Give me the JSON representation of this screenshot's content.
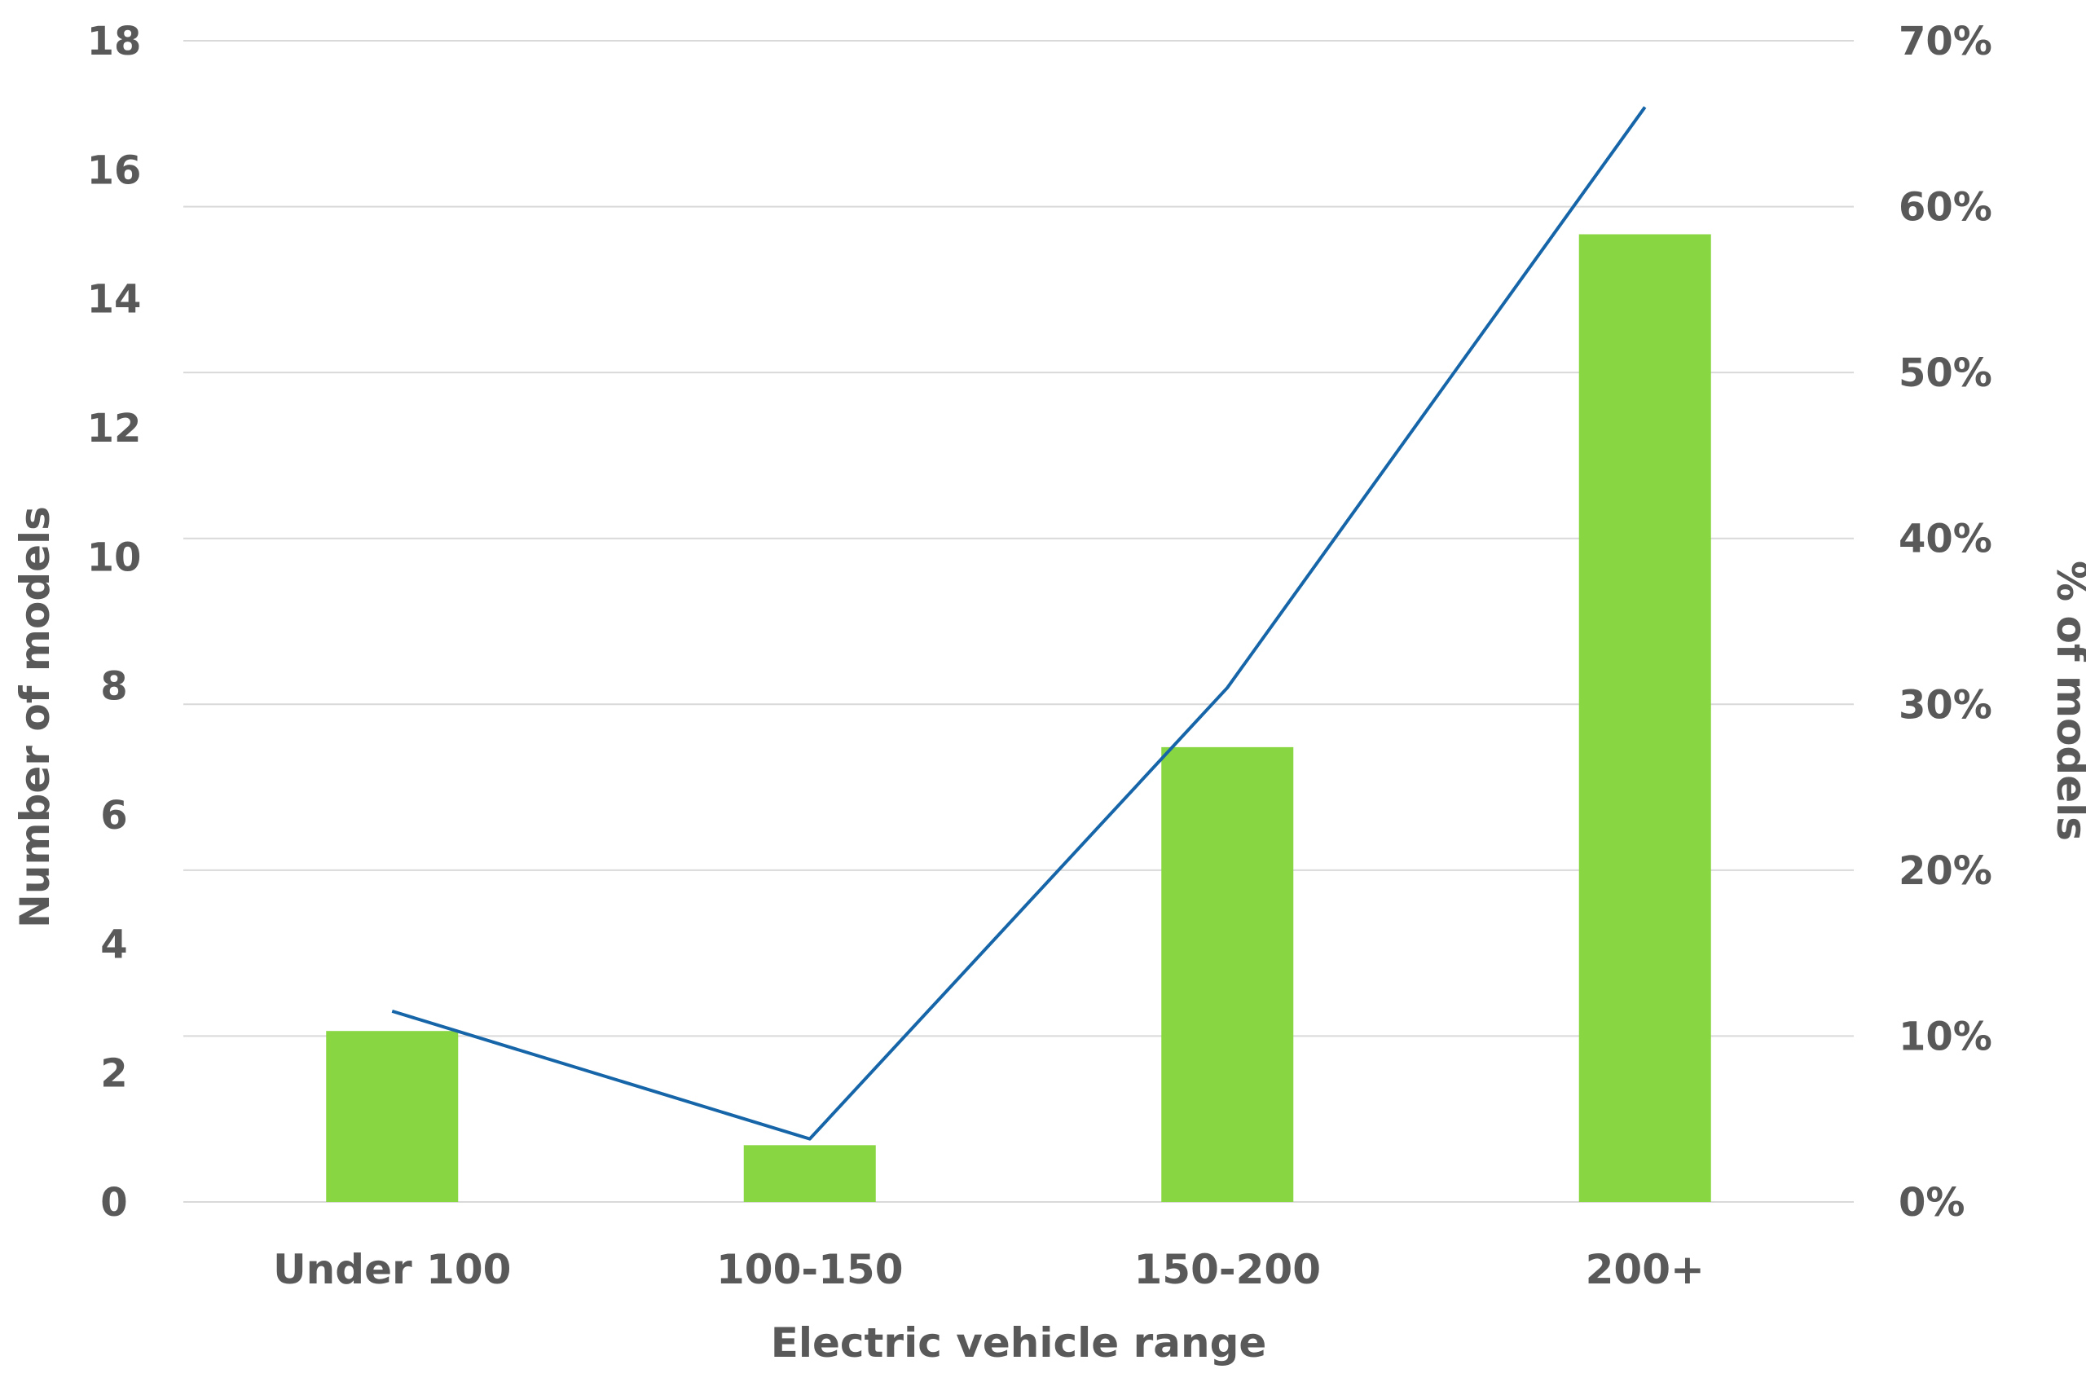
{
  "chart_data": {
    "type": "bar",
    "categories": [
      "Under 100",
      "100-150",
      "150-200",
      "200+"
    ],
    "series": [
      {
        "type": "bar",
        "axis": "left",
        "color": "#88d642",
        "values": [
          2.65,
          0.88,
          7.05,
          15.0
        ]
      },
      {
        "type": "line",
        "axis": "right",
        "color": "#1565a8",
        "values": [
          11.5,
          3.8,
          31.0,
          66.0
        ]
      }
    ],
    "xlabel": "Electric vehicle range",
    "ylabel": "Number of models",
    "y2label": "% of models",
    "ylim": [
      0,
      18
    ],
    "y2lim": [
      0,
      70
    ],
    "yticks": [
      "0",
      "2",
      "4",
      "6",
      "8",
      "10",
      "12",
      "14",
      "16",
      "18"
    ],
    "y2ticks": [
      "0%",
      "10%",
      "20%",
      "30%",
      "40%",
      "50%",
      "60%",
      "70%"
    ],
    "grid": true,
    "legend": "none"
  }
}
